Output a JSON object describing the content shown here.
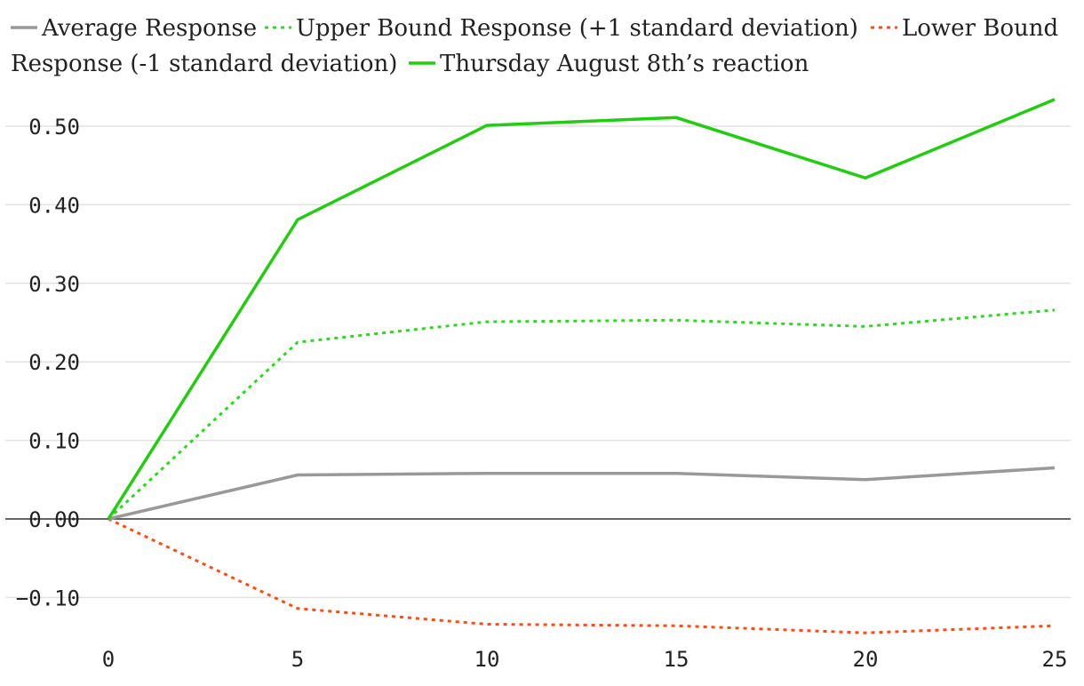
{
  "chart_data": {
    "type": "line",
    "title": "",
    "xlabel": "",
    "ylabel": "",
    "x": [
      0,
      5,
      10,
      15,
      20,
      25
    ],
    "xticks": [
      "0",
      "5",
      "10",
      "15",
      "20",
      "25"
    ],
    "yticks": [
      "−0.10",
      "0.00",
      "0.10",
      "0.20",
      "0.30",
      "0.40",
      "0.50"
    ],
    "ytick_values": [
      -0.1,
      0.0,
      0.1,
      0.2,
      0.3,
      0.4,
      0.5
    ],
    "xlim": [
      0,
      25
    ],
    "ylim": [
      -0.13,
      0.56
    ],
    "grid": true,
    "legend_position": "top",
    "series": [
      {
        "name": "Average Response",
        "color": "#999999",
        "style": "solid",
        "values": [
          0.0,
          0.056,
          0.058,
          0.058,
          0.05,
          0.065
        ]
      },
      {
        "name": "Upper Bound Response (+1 standard deviation)",
        "color": "#2bd91f",
        "style": "dotted",
        "values": [
          0.0,
          0.225,
          0.251,
          0.253,
          0.245,
          0.266
        ]
      },
      {
        "name": "Lower Bound Response (-1 standard deviation)",
        "color": "#ff4b0f",
        "style": "dotted",
        "values": [
          0.0,
          -0.114,
          -0.134,
          -0.136,
          -0.145,
          -0.136
        ]
      },
      {
        "name": "Thursday August 8th’s reaction",
        "color": "#22cc11",
        "style": "solid",
        "values": [
          0.0,
          0.381,
          0.501,
          0.511,
          0.434,
          0.534
        ]
      }
    ]
  }
}
